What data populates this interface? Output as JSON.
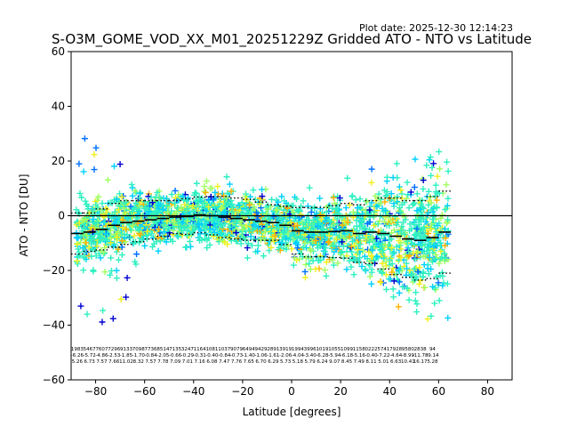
{
  "chart_data": {
    "type": "scatter",
    "title": "S-O3M_GOME_VOD_XX_M01_20251229Z Gridded ATO - NTO vs Latitude",
    "plot_date": "Plot date: 2025-12-30 12:14:23",
    "xlabel": "Latitude [degrees]",
    "ylabel": "ATO - NTO [DU]",
    "xlim": [
      -90,
      90
    ],
    "ylim": [
      -60,
      60
    ],
    "xticks": [
      -80,
      -60,
      -40,
      -20,
      0,
      20,
      40,
      60,
      80
    ],
    "yticks": [
      -60,
      -40,
      -20,
      0,
      20,
      40,
      60
    ],
    "xtick_labels": [
      "−80",
      "−60",
      "−40",
      "−20",
      "0",
      "20",
      "40",
      "60",
      "80"
    ],
    "ytick_labels": [
      "−60",
      "−40",
      "−20",
      "0",
      "20",
      "40",
      "60"
    ],
    "zero_line": 0,
    "colormap": [
      "#0000d0",
      "#0070ff",
      "#00d0ff",
      "#2ef0c0",
      "#a0ff60",
      "#f0f020",
      "#ffb000"
    ],
    "bins": {
      "lat": [
        -87.5,
        -82.5,
        -77.5,
        -72.5,
        -67.5,
        -62.5,
        -57.5,
        -52.5,
        -47.5,
        -42.5,
        -37.5,
        -32.5,
        -27.5,
        -22.5,
        -17.5,
        -12.5,
        -7.5,
        -2.5,
        2.5,
        7.5,
        12.5,
        17.5,
        22.5,
        27.5,
        32.5,
        37.5,
        42.5,
        47.5,
        52.5,
        57.5,
        62.5
      ],
      "mean": [
        -6.5,
        -6.0,
        -5.0,
        -3.5,
        -2.5,
        -2.0,
        -1.5,
        -1.0,
        -0.5,
        -0.3,
        0.3,
        0.0,
        -0.5,
        -1.0,
        -1.5,
        -2.0,
        -2.5,
        -3.5,
        -5.5,
        -6.0,
        -6.0,
        -5.8,
        -5.5,
        -6.5,
        -6.0,
        -6.5,
        -7.5,
        -8.5,
        -9.0,
        -8.0,
        -6.0
      ],
      "std": [
        7.5,
        7.0,
        7.5,
        8.0,
        8.0,
        7.5,
        7.0,
        6.5,
        6.0,
        6.5,
        6.5,
        7.0,
        7.5,
        7.5,
        7.5,
        7.0,
        6.5,
        7.0,
        8.5,
        9.0,
        9.0,
        9.5,
        10.0,
        10.5,
        11.5,
        13.0,
        14.0,
        14.0,
        14.5,
        15.0,
        15.0
      ]
    },
    "stats_counts": [
      "1983",
      "5467",
      "7607",
      "7296",
      "9133",
      "7098",
      "7736",
      "8514",
      "7135",
      "3247",
      "1164",
      "1081",
      "1037",
      "9079",
      "6494",
      "9429",
      "2891",
      "3919",
      "1994",
      "3996",
      "1019",
      "1055",
      "1099",
      "1158",
      "0222",
      "5741",
      "7928",
      "9580",
      "2838",
      "94"
    ],
    "stats_means": [
      "-6.26",
      "-5.72",
      "-4.86",
      "-2.53",
      "-1.85",
      "-1.70",
      "-0.84",
      "-2.05",
      "-0.66",
      "-0.29",
      "-0.31",
      "-0.40",
      "-0.84",
      "-0.73",
      "-1.40",
      "-1.06",
      "-1.61",
      "-2.06",
      "-4.04",
      "-3.40",
      "-6.28",
      "-5.94",
      "-6.18",
      "-5.16",
      "-0.40",
      "-7.22",
      "-4.64",
      "-8.99",
      "-11.78",
      "-9.14"
    ],
    "stats_stds": [
      "5.26",
      "6.73",
      "7.57",
      "7.66",
      "11.02",
      "8.32",
      "7.57",
      "7.78",
      "7.09",
      "7.01",
      "7.16",
      "6.08",
      "7.47",
      "7.76",
      "7.65",
      "6.70",
      "6.29",
      "5.73",
      "5.18",
      "5.79",
      "6.24",
      "9.07",
      "8.45",
      "7.49",
      "8.11",
      "5.01",
      "6.63",
      "10.41",
      "16.17",
      "5.28"
    ]
  }
}
